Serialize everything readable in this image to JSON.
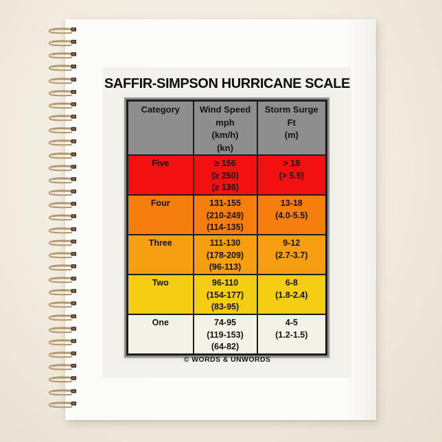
{
  "page": {
    "title": "SAFFIR-SIMPSON HURRICANE SCALE",
    "credit": "© WORDS & UNWORDS"
  },
  "table": {
    "headers": {
      "category": "Category",
      "wind_speed": [
        "Wind Speed",
        "mph",
        "(km/h)",
        "(kn)"
      ],
      "storm_surge": [
        "Storm Surge",
        "Ft",
        "(m)"
      ]
    },
    "header_bg": "#8e8e8e",
    "border_color": "#1c1c1c",
    "rows": [
      {
        "category": "Five",
        "wind": [
          "≥ 156",
          "(≥ 250)",
          "(≥ 136)"
        ],
        "surge": [
          "> 18",
          "(> 5.5)"
        ],
        "color": "#f31010"
      },
      {
        "category": "Four",
        "wind": [
          "131-155",
          "(210-249)",
          "(114-135)"
        ],
        "surge": [
          "13-18",
          "(4.0-5.5)"
        ],
        "color": "#f67e0c"
      },
      {
        "category": "Three",
        "wind": [
          "111-130",
          "(178-209)",
          "(96-113)"
        ],
        "surge": [
          "9-12",
          "(2.7-3.7)"
        ],
        "color": "#f59e0f"
      },
      {
        "category": "Two",
        "wind": [
          "96-110",
          "(154-177)",
          "(83-95)"
        ],
        "surge": [
          "6-8",
          "(1.8-2.4)"
        ],
        "color": "#f4cc12"
      },
      {
        "category": "One",
        "wind": [
          "74-95",
          "(119-153)",
          "(64-82)"
        ],
        "surge": [
          "4-5",
          "(1.2-1.5)"
        ],
        "color": "#f4f2e6"
      }
    ]
  },
  "notebook": {
    "paper_color": "#fbfbf9",
    "background_color": "#f1ebe0",
    "coil_wire_color": "#b59a6f",
    "coil_tip_color": "#41342a",
    "coil_tip_highlight": "#8a6f4e"
  }
}
